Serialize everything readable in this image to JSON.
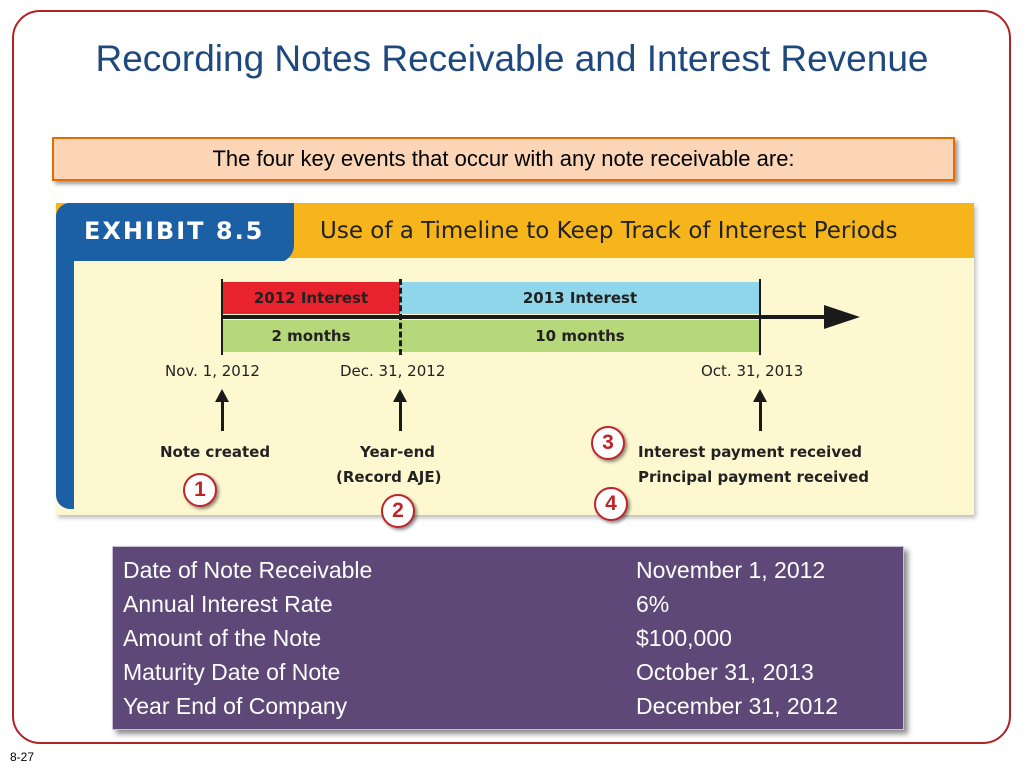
{
  "slide": {
    "title": "Recording Notes Receivable and Interest Revenue",
    "callout": "The four key events that occur with any note receivable are:",
    "slide_number": "8-27"
  },
  "exhibit": {
    "tab_label": "EXHIBIT 8.5",
    "title": "Use of a Timeline to Keep Track of Interest Periods",
    "segments": {
      "interest_2012": "2012 Interest",
      "interest_2013": "2013 Interest",
      "months_1": "2 months",
      "months_2": "10 months"
    },
    "dates": {
      "start": "Nov. 1, 2012",
      "year_end": "Dec. 31, 2012",
      "maturity": "Oct. 31, 2013"
    },
    "events": {
      "note_created": "Note created",
      "year_end_line1": "Year-end",
      "year_end_line2": "(Record AJE)",
      "interest_payment": "Interest payment received",
      "principal_payment": "Principal payment received"
    },
    "colors": {
      "red_segment": "#e8232d",
      "blue_segment": "#8fd6ea",
      "green_segment": "#b6d77a",
      "header_orange": "#f7b51c",
      "tab_blue": "#1b5fa5"
    }
  },
  "markers": {
    "m1": "1",
    "m2": "2",
    "m3": "3",
    "m4": "4"
  },
  "details": [
    {
      "label": "Date of Note Receivable",
      "value": "November 1, 2012"
    },
    {
      "label": "Annual Interest Rate",
      "value": "6%"
    },
    {
      "label": "Amount of the Note",
      "value": "$100,000"
    },
    {
      "label": "Maturity Date of Note",
      "value": "October 31, 2013"
    },
    {
      "label": "Year End of Company",
      "value": "December 31, 2012"
    }
  ]
}
